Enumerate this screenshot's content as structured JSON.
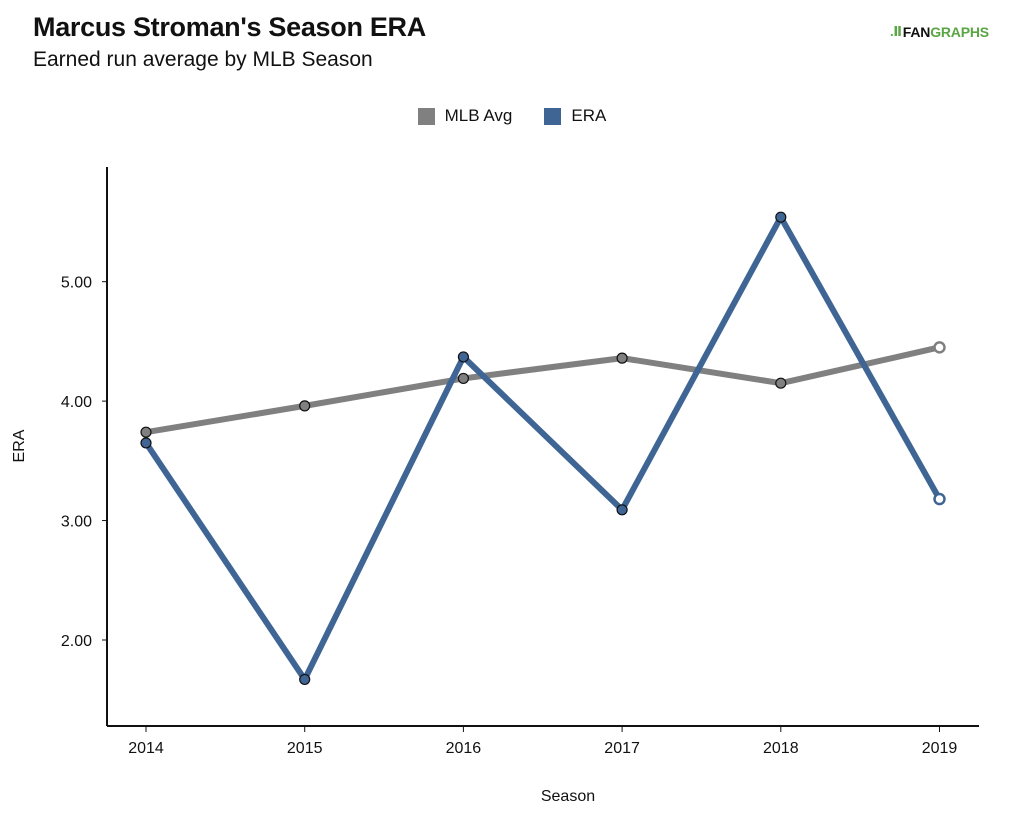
{
  "header": {
    "title": "Marcus Stroman's Season ERA",
    "subtitle": "Earned run average by MLB Season",
    "logo": {
      "mark": ".Ⅱ",
      "fan": "FAN",
      "graphs": "GRAPHS"
    }
  },
  "colors": {
    "mlb_avg": "#808080",
    "era": "#3f6595",
    "logo_green": "#5aa544",
    "axis": "#111111"
  },
  "chart_data": {
    "type": "line",
    "title": "Marcus Stroman's Season ERA",
    "subtitle": "Earned run average by MLB Season",
    "xlabel": "Season",
    "ylabel": "ERA",
    "x": [
      2014,
      2015,
      2016,
      2017,
      2018,
      2019
    ],
    "x_tick_labels": [
      "2014",
      "2015",
      "2016",
      "2017",
      "2018",
      "2019"
    ],
    "y_ticks": [
      2,
      3,
      4,
      5
    ],
    "y_tick_labels": [
      "2.00",
      "3.00",
      "4.00",
      "5.00"
    ],
    "ylim": [
      1.28,
      5.96
    ],
    "grid": false,
    "legend_position": "top-center",
    "series": [
      {
        "name": "MLB Avg",
        "color": "#808080",
        "values": [
          3.74,
          3.96,
          4.19,
          4.36,
          4.15,
          4.45
        ],
        "hollow_last": true
      },
      {
        "name": "ERA",
        "color": "#3f6595",
        "values": [
          3.65,
          1.67,
          4.37,
          3.09,
          5.54,
          3.18
        ],
        "hollow_last": true
      }
    ]
  }
}
